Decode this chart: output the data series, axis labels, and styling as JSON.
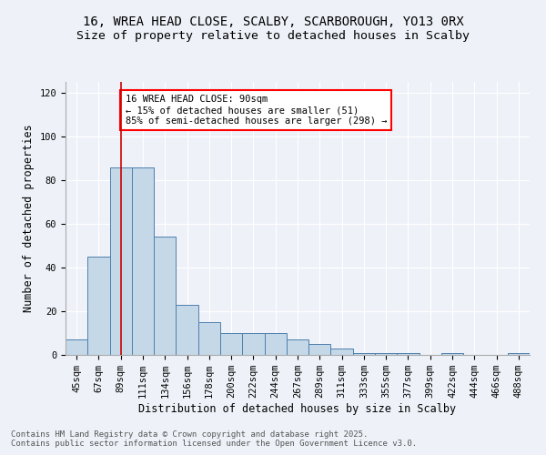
{
  "title1": "16, WREA HEAD CLOSE, SCALBY, SCARBOROUGH, YO13 0RX",
  "title2": "Size of property relative to detached houses in Scalby",
  "xlabel": "Distribution of detached houses by size in Scalby",
  "ylabel": "Number of detached properties",
  "categories": [
    "45sqm",
    "67sqm",
    "89sqm",
    "111sqm",
    "134sqm",
    "156sqm",
    "178sqm",
    "200sqm",
    "222sqm",
    "244sqm",
    "267sqm",
    "289sqm",
    "311sqm",
    "333sqm",
    "355sqm",
    "377sqm",
    "399sqm",
    "422sqm",
    "444sqm",
    "466sqm",
    "488sqm"
  ],
  "values": [
    7,
    45,
    86,
    86,
    54,
    23,
    15,
    10,
    10,
    10,
    7,
    5,
    3,
    1,
    1,
    1,
    0,
    1,
    0,
    0,
    1
  ],
  "bar_color": "#c5d8e8",
  "bar_edge_color": "#4d7fad",
  "red_line_x": 2,
  "annotation_text": "16 WREA HEAD CLOSE: 90sqm\n← 15% of detached houses are smaller (51)\n85% of semi-detached houses are larger (298) →",
  "annotation_box_color": "white",
  "annotation_box_edge_color": "red",
  "red_line_color": "#cc0000",
  "ylim": [
    0,
    125
  ],
  "yticks": [
    0,
    20,
    40,
    60,
    80,
    100,
    120
  ],
  "bg_color": "#eef2f8",
  "footer_text": "Contains HM Land Registry data © Crown copyright and database right 2025.\nContains public sector information licensed under the Open Government Licence v3.0.",
  "title_fontsize": 10,
  "subtitle_fontsize": 9.5,
  "axis_label_fontsize": 8.5,
  "tick_fontsize": 7.5,
  "footer_fontsize": 6.5,
  "annotation_fontsize": 7.5
}
